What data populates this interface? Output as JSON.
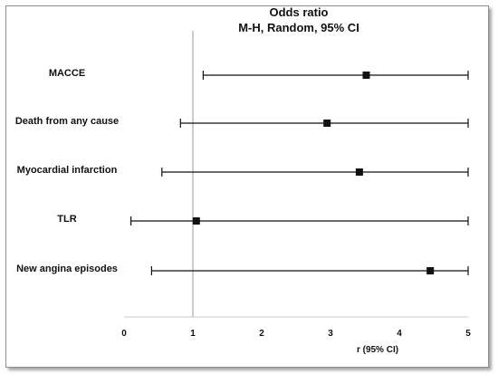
{
  "chart_data": {
    "type": "forest",
    "title": "Odds ratio",
    "subtitle": "M-H, Random, 95% CI",
    "xlabel": "r (95% CI)",
    "xlim": [
      0,
      5
    ],
    "xticks": [
      0,
      1,
      2,
      3,
      4,
      5
    ],
    "reference_line": 1,
    "categories": [
      "MACCE",
      "Death from any cause",
      "Myocardial infarction",
      "TLR",
      "New angina episodes"
    ],
    "points": [
      {
        "label": "MACCE",
        "estimate": 3.52,
        "lower": 1.15,
        "upper": 5
      },
      {
        "label": "Death from any cause",
        "estimate": 2.95,
        "lower": 0.82,
        "upper": 5
      },
      {
        "label": "Myocardial infarction",
        "estimate": 3.42,
        "lower": 0.55,
        "upper": 5
      },
      {
        "label": "TLR",
        "estimate": 1.05,
        "lower": 0.1,
        "upper": 5
      },
      {
        "label": "New angina episodes",
        "estimate": 4.45,
        "lower": 0.4,
        "upper": 5
      }
    ]
  }
}
